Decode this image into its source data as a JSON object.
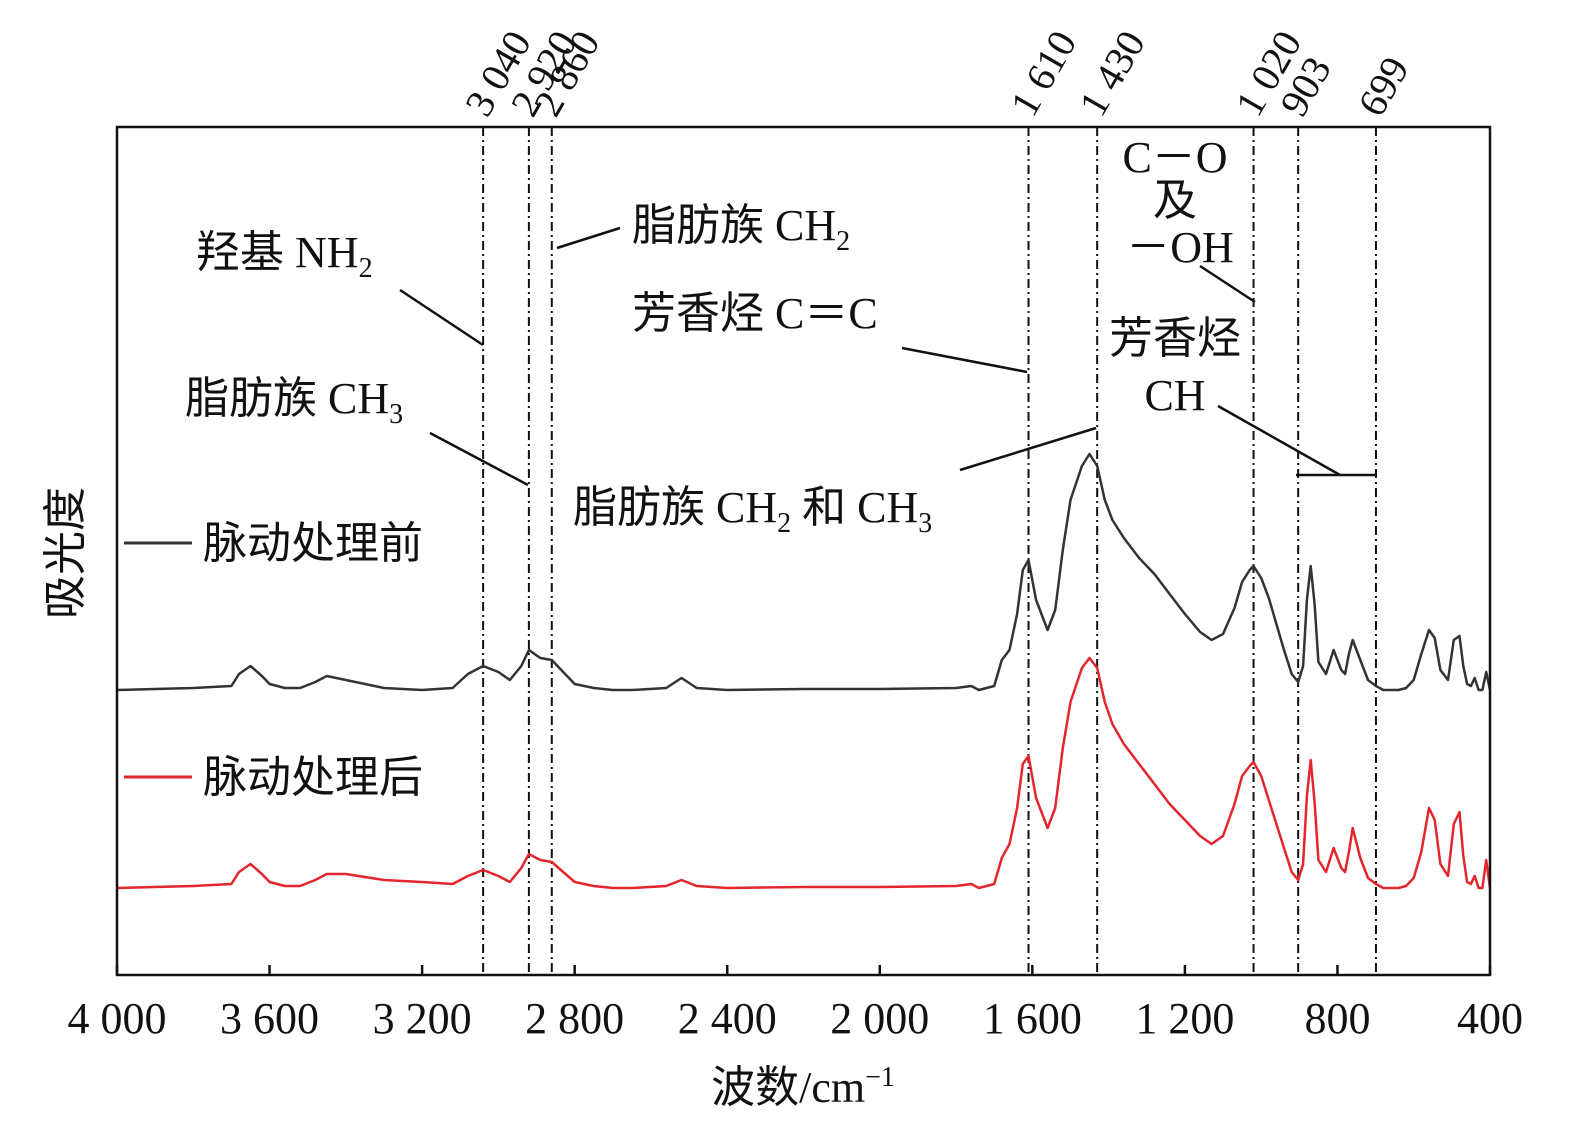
{
  "chart_data": {
    "type": "line",
    "title": "",
    "xlabel": "波数/cm",
    "xlabel_sup": "−1",
    "ylabel": "吸光度",
    "xlim": [
      4000,
      400
    ],
    "x_reversed": true,
    "grid": false,
    "legend_placement": "left",
    "x_ticks": [
      {
        "value": 4000,
        "label": "4 000"
      },
      {
        "value": 3600,
        "label": "3 600"
      },
      {
        "value": 3200,
        "label": "3 200"
      },
      {
        "value": 2800,
        "label": "2 800"
      },
      {
        "value": 2400,
        "label": "2 400"
      },
      {
        "value": 2000,
        "label": "2 000"
      },
      {
        "value": 1600,
        "label": "1 600"
      },
      {
        "value": 1200,
        "label": "1 200"
      },
      {
        "value": 800,
        "label": "800"
      },
      {
        "value": 400,
        "label": "400"
      }
    ],
    "reference_lines": [
      {
        "value": 3040,
        "label": "3 040"
      },
      {
        "value": 2920,
        "label": "2 920"
      },
      {
        "value": 2860,
        "label": "2 860"
      },
      {
        "value": 1610,
        "label": "1 610"
      },
      {
        "value": 1430,
        "label": "1 430"
      },
      {
        "value": 1020,
        "label": "1 020"
      },
      {
        "value": 903,
        "label": "903"
      },
      {
        "value": 699,
        "label": "699"
      }
    ],
    "annotations": {
      "hydroxyl_nh2": {
        "text": "羟基 NH",
        "sub": "2"
      },
      "aliphatic_ch2": {
        "text": "脂肪族 CH",
        "sub": "2"
      },
      "aliphatic_ch3": {
        "text": "脂肪族 CH",
        "sub": "3"
      },
      "aromatic_cc": {
        "text": "芳香烃 C＝C"
      },
      "aliphatic_ch2_ch3": {
        "pre": "脂肪族 CH",
        "sub1": "2",
        "mid": " 和 CH",
        "sub2": "3"
      },
      "co_oh_line1": "C－O",
      "co_oh_line2": "及",
      "co_oh_line3": "－OH",
      "aromatic_ch_line1": "芳香烃",
      "aromatic_ch_line2": "CH"
    },
    "series": [
      {
        "name": "脉动处理前",
        "color": "#333333",
        "x": [
          4000,
          3900,
          3800,
          3700,
          3680,
          3650,
          3620,
          3600,
          3560,
          3520,
          3480,
          3450,
          3400,
          3300,
          3200,
          3120,
          3080,
          3040,
          3000,
          2970,
          2940,
          2920,
          2890,
          2860,
          2830,
          2800,
          2750,
          2700,
          2650,
          2560,
          2520,
          2480,
          2400,
          2200,
          2000,
          1800,
          1760,
          1740,
          1700,
          1680,
          1660,
          1640,
          1625,
          1610,
          1590,
          1560,
          1540,
          1520,
          1500,
          1470,
          1450,
          1430,
          1410,
          1390,
          1360,
          1320,
          1280,
          1240,
          1200,
          1160,
          1130,
          1100,
          1070,
          1050,
          1030,
          1020,
          1000,
          980,
          960,
          940,
          920,
          903,
          890,
          880,
          870,
          860,
          850,
          830,
          810,
          790,
          780,
          770,
          760,
          740,
          720,
          699,
          680,
          640,
          620,
          600,
          580,
          560,
          545,
          530,
          510,
          495,
          480,
          470,
          460,
          450,
          440,
          430,
          420,
          410,
          400
        ],
        "y": [
          0.0,
          0.005,
          0.01,
          0.02,
          0.08,
          0.12,
          0.07,
          0.03,
          0.01,
          0.01,
          0.04,
          0.07,
          0.05,
          0.01,
          0.0,
          0.01,
          0.08,
          0.12,
          0.09,
          0.05,
          0.12,
          0.2,
          0.16,
          0.15,
          0.09,
          0.03,
          0.01,
          0.0,
          0.0,
          0.01,
          0.06,
          0.01,
          0.0,
          0.005,
          0.005,
          0.01,
          0.02,
          0.0,
          0.02,
          0.15,
          0.2,
          0.38,
          0.6,
          0.65,
          0.45,
          0.3,
          0.4,
          0.7,
          0.95,
          1.12,
          1.18,
          1.12,
          0.95,
          0.85,
          0.76,
          0.66,
          0.58,
          0.48,
          0.38,
          0.29,
          0.25,
          0.28,
          0.41,
          0.54,
          0.6,
          0.62,
          0.56,
          0.46,
          0.33,
          0.2,
          0.08,
          0.04,
          0.12,
          0.45,
          0.62,
          0.43,
          0.14,
          0.08,
          0.2,
          0.1,
          0.08,
          0.18,
          0.25,
          0.15,
          0.05,
          0.02,
          0.0,
          0.0,
          0.01,
          0.05,
          0.18,
          0.3,
          0.26,
          0.1,
          0.05,
          0.25,
          0.27,
          0.12,
          0.03,
          0.02,
          0.06,
          0.0,
          0.0,
          0.09,
          0.0
        ]
      },
      {
        "name": "脉动处理后",
        "color": "#e3262d",
        "x": [
          4000,
          3900,
          3800,
          3700,
          3680,
          3650,
          3620,
          3600,
          3560,
          3520,
          3480,
          3450,
          3400,
          3300,
          3200,
          3120,
          3080,
          3040,
          3000,
          2970,
          2940,
          2920,
          2890,
          2860,
          2830,
          2800,
          2750,
          2700,
          2650,
          2560,
          2520,
          2480,
          2400,
          2200,
          2000,
          1800,
          1760,
          1740,
          1700,
          1680,
          1660,
          1640,
          1625,
          1610,
          1590,
          1560,
          1540,
          1520,
          1500,
          1470,
          1450,
          1430,
          1410,
          1390,
          1360,
          1320,
          1280,
          1240,
          1200,
          1160,
          1130,
          1100,
          1070,
          1050,
          1030,
          1020,
          1000,
          980,
          960,
          940,
          920,
          903,
          890,
          880,
          870,
          860,
          850,
          830,
          810,
          790,
          780,
          770,
          760,
          740,
          720,
          699,
          680,
          640,
          620,
          600,
          580,
          560,
          545,
          530,
          510,
          495,
          480,
          470,
          460,
          450,
          440,
          430,
          420,
          410,
          400
        ],
        "y": [
          0.0,
          0.005,
          0.01,
          0.02,
          0.08,
          0.12,
          0.07,
          0.03,
          0.01,
          0.01,
          0.04,
          0.07,
          0.07,
          0.04,
          0.03,
          0.02,
          0.06,
          0.09,
          0.06,
          0.03,
          0.1,
          0.17,
          0.14,
          0.13,
          0.08,
          0.03,
          0.01,
          0.0,
          0.0,
          0.01,
          0.04,
          0.01,
          0.0,
          0.005,
          0.005,
          0.01,
          0.02,
          0.0,
          0.02,
          0.15,
          0.22,
          0.4,
          0.62,
          0.66,
          0.45,
          0.3,
          0.4,
          0.7,
          0.93,
          1.1,
          1.15,
          1.1,
          0.93,
          0.82,
          0.72,
          0.62,
          0.52,
          0.42,
          0.34,
          0.26,
          0.22,
          0.26,
          0.42,
          0.56,
          0.61,
          0.63,
          0.56,
          0.44,
          0.32,
          0.2,
          0.08,
          0.04,
          0.12,
          0.46,
          0.64,
          0.43,
          0.14,
          0.08,
          0.2,
          0.1,
          0.08,
          0.18,
          0.3,
          0.15,
          0.05,
          0.02,
          0.0,
          0.0,
          0.01,
          0.05,
          0.18,
          0.4,
          0.34,
          0.12,
          0.06,
          0.32,
          0.38,
          0.16,
          0.03,
          0.02,
          0.06,
          0.0,
          0.0,
          0.14,
          0.0
        ]
      }
    ]
  }
}
